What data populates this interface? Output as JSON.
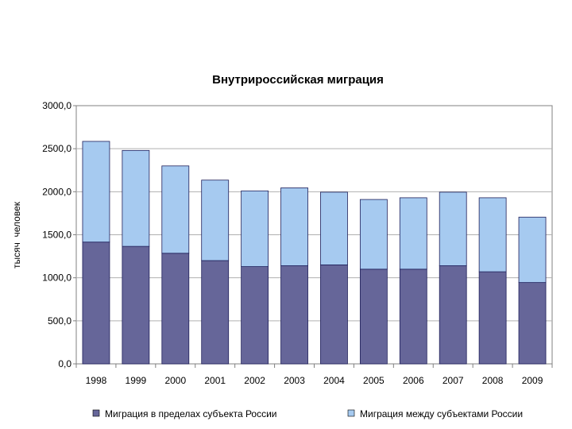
{
  "chart_data": {
    "type": "bar",
    "stacked": true,
    "title": "Внутрироссийская миграция",
    "xlabel": "",
    "ylabel": "тысяч  человек",
    "categories": [
      "1998",
      "1999",
      "2000",
      "2001",
      "2002",
      "2003",
      "2004",
      "2005",
      "2006",
      "2007",
      "2008",
      "2009"
    ],
    "series": [
      {
        "name": "Миграция в пределах субъекта России",
        "color": "#666699",
        "values": [
          1415,
          1365,
          1285,
          1200,
          1130,
          1140,
          1150,
          1100,
          1100,
          1140,
          1070,
          945
        ]
      },
      {
        "name": "Миграция между субъектами России",
        "color": "#A6CAF0",
        "values": [
          1170,
          1115,
          1015,
          935,
          880,
          905,
          845,
          810,
          830,
          855,
          860,
          760
        ]
      }
    ],
    "ylim": [
      0,
      3000
    ],
    "yticks": [
      "0,0",
      "500,0",
      "1000,0",
      "1500,0",
      "2000,0",
      "2500,0",
      "3000,0"
    ],
    "grid": true,
    "legend": "bottom"
  }
}
